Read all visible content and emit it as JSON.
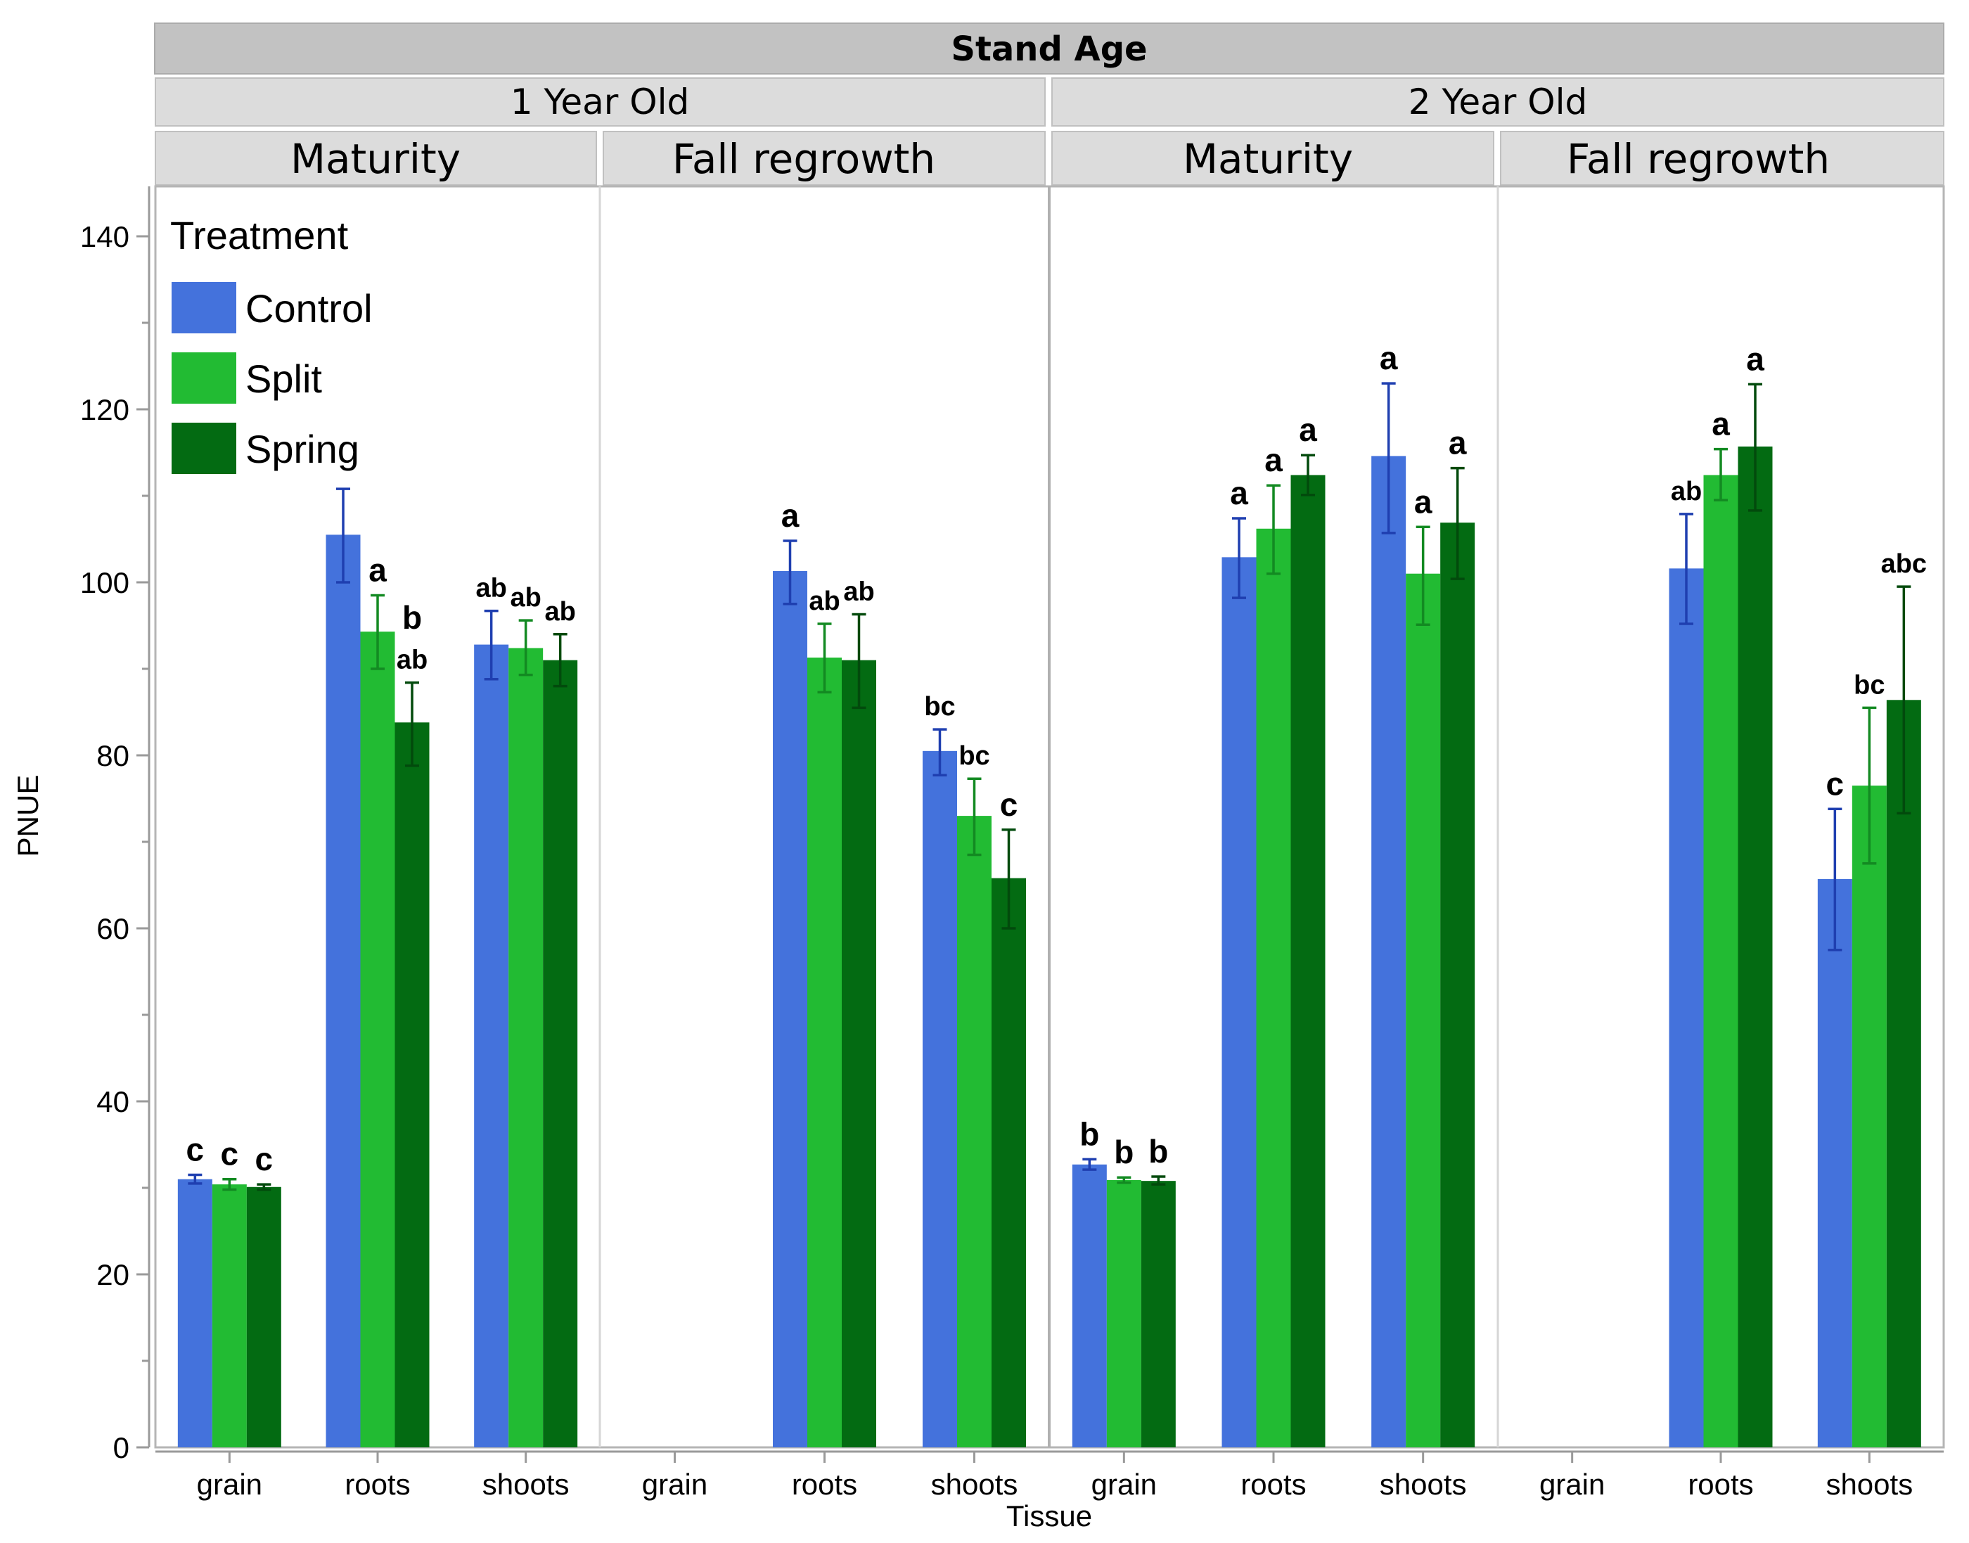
{
  "chart_data": {
    "type": "bar",
    "facet_title": "Stand Age",
    "stand_ages": [
      "1 Year Old",
      "2 Year Old"
    ],
    "stages": [
      "Maturity",
      "Fall regrowth"
    ],
    "categories": [
      "grain",
      "roots",
      "shoots"
    ],
    "xlabel": "Tissue",
    "ylabel": "PNUE",
    "ylim": [
      0,
      145
    ],
    "yticks": [
      "0",
      "20",
      "40",
      "60",
      "80",
      "100",
      "120",
      "140"
    ],
    "legend": {
      "title": "Treatment",
      "placement": "top-left",
      "items": [
        "Control",
        "Split",
        "Spring"
      ]
    },
    "colors": {
      "Control": "#4472dc",
      "Split": "#22bb33",
      "Spring": "#036b12"
    },
    "error_colors": {
      "Control": "#1f3fb0",
      "Split": "#138a22",
      "Spring": "#024a0c"
    },
    "panels": [
      {
        "stand_age": "1 Year Old",
        "stage": "Maturity",
        "groups": [
          {
            "tissue": "grain",
            "bars": [
              {
                "treatment": "Control",
                "value": 31.0,
                "err": [
                  30.5,
                  31.5
                ],
                "letter": "c"
              },
              {
                "treatment": "Split",
                "value": 30.4,
                "err": [
                  29.8,
                  31.0
                ],
                "letter": "c"
              },
              {
                "treatment": "Spring",
                "value": 30.1,
                "err": [
                  29.8,
                  30.4
                ],
                "letter": "c"
              }
            ]
          },
          {
            "tissue": "roots",
            "bars": [
              {
                "treatment": "Control",
                "value": 105.5,
                "err": [
                  100.0,
                  110.8
                ],
                "letter": ""
              },
              {
                "treatment": "Split",
                "value": 94.3,
                "err": [
                  90.0,
                  98.5
                ],
                "letter": "a"
              },
              {
                "treatment": "Spring",
                "value": 83.8,
                "err": [
                  78.8,
                  88.4
                ],
                "letter": "ab"
              }
            ]
          },
          {
            "tissue": "shoots",
            "bars": [
              {
                "treatment": "Control",
                "value": 92.8,
                "err": [
                  88.8,
                  96.7
                ],
                "letter": "ab"
              },
              {
                "treatment": "Split",
                "value": 92.4,
                "err": [
                  89.3,
                  95.6
                ],
                "letter": "ab"
              },
              {
                "treatment": "Spring",
                "value": 91.0,
                "err": [
                  88.0,
                  94.0
                ],
                "letter": "ab"
              }
            ]
          }
        ],
        "extra_labels": [
          {
            "text": "b",
            "group": 1,
            "bar": 2,
            "value": 93.0
          }
        ]
      },
      {
        "stand_age": "1 Year Old",
        "stage": "Fall regrowth",
        "groups": [
          {
            "tissue": "grain",
            "bars": []
          },
          {
            "tissue": "roots",
            "bars": [
              {
                "treatment": "Control",
                "value": 101.3,
                "err": [
                  97.5,
                  104.8
                ],
                "letter": "a"
              },
              {
                "treatment": "Split",
                "value": 91.3,
                "err": [
                  87.3,
                  95.2
                ],
                "letter": "ab"
              },
              {
                "treatment": "Spring",
                "value": 91.0,
                "err": [
                  85.5,
                  96.3
                ],
                "letter": "ab"
              }
            ]
          },
          {
            "tissue": "shoots",
            "bars": [
              {
                "treatment": "Control",
                "value": 80.5,
                "err": [
                  77.7,
                  83.0
                ],
                "letter": "bc"
              },
              {
                "treatment": "Split",
                "value": 73.0,
                "err": [
                  68.5,
                  77.3
                ],
                "letter": "bc"
              },
              {
                "treatment": "Spring",
                "value": 65.8,
                "err": [
                  60.0,
                  71.4
                ],
                "letter": "c"
              }
            ]
          }
        ]
      },
      {
        "stand_age": "2 Year Old",
        "stage": "Maturity",
        "groups": [
          {
            "tissue": "grain",
            "bars": [
              {
                "treatment": "Control",
                "value": 32.7,
                "err": [
                  32.1,
                  33.3
                ],
                "letter": "b"
              },
              {
                "treatment": "Split",
                "value": 30.9,
                "err": [
                  30.6,
                  31.2
                ],
                "letter": "b"
              },
              {
                "treatment": "Spring",
                "value": 30.8,
                "err": [
                  30.4,
                  31.3
                ],
                "letter": "b"
              }
            ]
          },
          {
            "tissue": "roots",
            "bars": [
              {
                "treatment": "Control",
                "value": 102.9,
                "err": [
                  98.2,
                  107.4
                ],
                "letter": "a"
              },
              {
                "treatment": "Split",
                "value": 106.2,
                "err": [
                  101.0,
                  111.2
                ],
                "letter": "a"
              },
              {
                "treatment": "Spring",
                "value": 112.4,
                "err": [
                  110.1,
                  114.7
                ],
                "letter": "a"
              }
            ]
          },
          {
            "tissue": "shoots",
            "bars": [
              {
                "treatment": "Control",
                "value": 114.6,
                "err": [
                  105.7,
                  123.0
                ],
                "letter": "a"
              },
              {
                "treatment": "Split",
                "value": 101.0,
                "err": [
                  95.1,
                  106.4
                ],
                "letter": "a"
              },
              {
                "treatment": "Spring",
                "value": 106.9,
                "err": [
                  100.4,
                  113.2
                ],
                "letter": "a"
              }
            ]
          }
        ]
      },
      {
        "stand_age": "2 Year Old",
        "stage": "Fall regrowth",
        "groups": [
          {
            "tissue": "grain",
            "bars": []
          },
          {
            "tissue": "roots",
            "bars": [
              {
                "treatment": "Control",
                "value": 101.6,
                "err": [
                  95.2,
                  107.9
                ],
                "letter": "ab"
              },
              {
                "treatment": "Split",
                "value": 112.4,
                "err": [
                  109.5,
                  115.4
                ],
                "letter": "a"
              },
              {
                "treatment": "Spring",
                "value": 115.7,
                "err": [
                  108.3,
                  122.9
                ],
                "letter": "a"
              }
            ]
          },
          {
            "tissue": "shoots",
            "bars": [
              {
                "treatment": "Control",
                "value": 65.7,
                "err": [
                  57.5,
                  73.8
                ],
                "letter": "c"
              },
              {
                "treatment": "Split",
                "value": 76.5,
                "err": [
                  67.5,
                  85.5
                ],
                "letter": "bc"
              },
              {
                "treatment": "Spring",
                "value": 86.4,
                "err": [
                  73.3,
                  99.5
                ],
                "letter": "abc"
              }
            ]
          }
        ]
      }
    ]
  }
}
